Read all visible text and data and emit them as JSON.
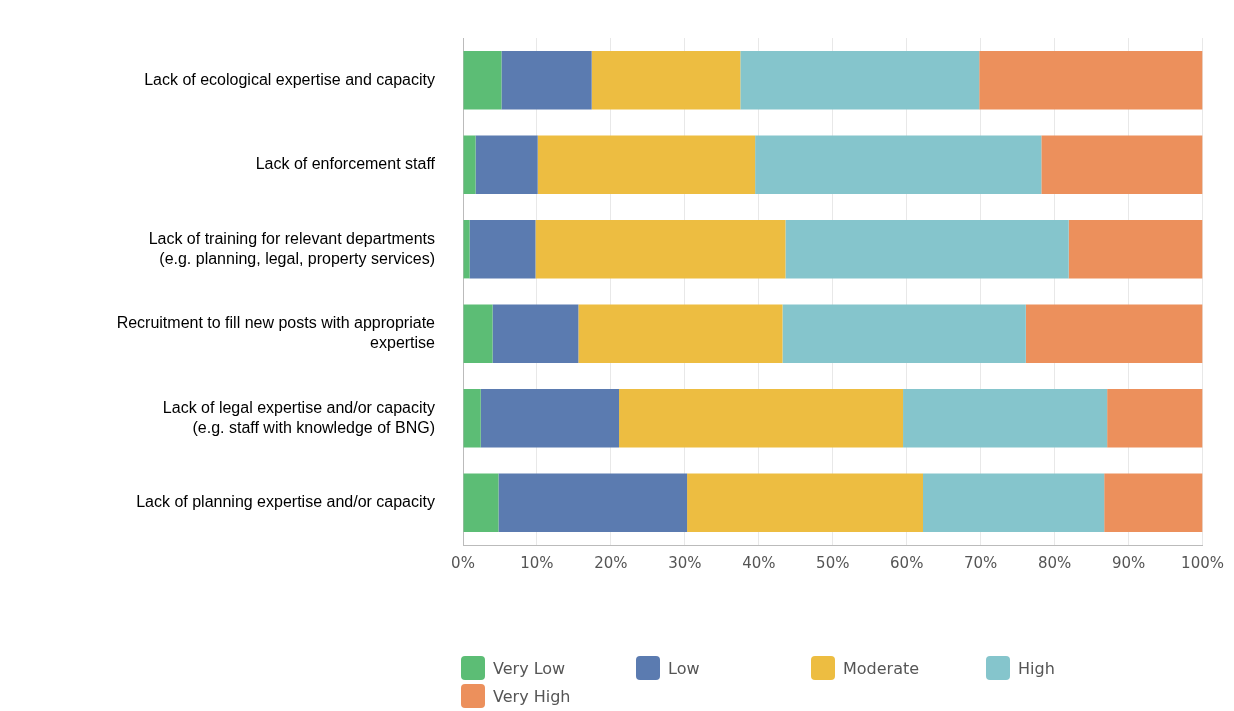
{
  "chart_data": {
    "type": "bar",
    "orientation": "horizontal",
    "stacked": true,
    "categories": [
      "Lack of ecological expertise and capacity",
      "Lack of enforcement staff",
      "Lack of training for relevant departments\n(e.g. planning, legal, property services)",
      "Recruitment to fill new posts with appropriate\nexpertise",
      "Lack of legal expertise and/or capacity\n(e.g. staff with knowledge of BNG)",
      "Lack of planning expertise and/or capacity"
    ],
    "series": [
      {
        "name": "Very Low",
        "color": "#5cbd75",
        "values": [
          5.2,
          1.7,
          0.9,
          4.0,
          2.4,
          4.8
        ]
      },
      {
        "name": "Low",
        "color": "#5b7bb0",
        "values": [
          12.2,
          8.4,
          8.9,
          11.6,
          18.7,
          25.5
        ]
      },
      {
        "name": "Moderate",
        "color": "#edbd41",
        "values": [
          20.1,
          29.4,
          33.8,
          27.6,
          38.4,
          31.9
        ]
      },
      {
        "name": "High",
        "color": "#85c5cc",
        "values": [
          32.3,
          38.7,
          38.3,
          32.9,
          27.6,
          24.5
        ]
      },
      {
        "name": "Very High",
        "color": "#ec905c",
        "values": [
          30.2,
          21.8,
          18.1,
          23.9,
          12.9,
          13.3
        ]
      }
    ],
    "xlim": [
      0,
      100
    ],
    "xticks": [
      {
        "value": 0,
        "label": "0%"
      },
      {
        "value": 10,
        "label": "10%"
      },
      {
        "value": 20,
        "label": "20%"
      },
      {
        "value": 30,
        "label": "30%"
      },
      {
        "value": 40,
        "label": "40%"
      },
      {
        "value": 50,
        "label": "50%"
      },
      {
        "value": 60,
        "label": "60%"
      },
      {
        "value": 70,
        "label": "70%"
      },
      {
        "value": 80,
        "label": "80%"
      },
      {
        "value": 90,
        "label": "90%"
      },
      {
        "value": 100,
        "label": "100%"
      }
    ],
    "grid": "x",
    "legend": "bottom"
  }
}
